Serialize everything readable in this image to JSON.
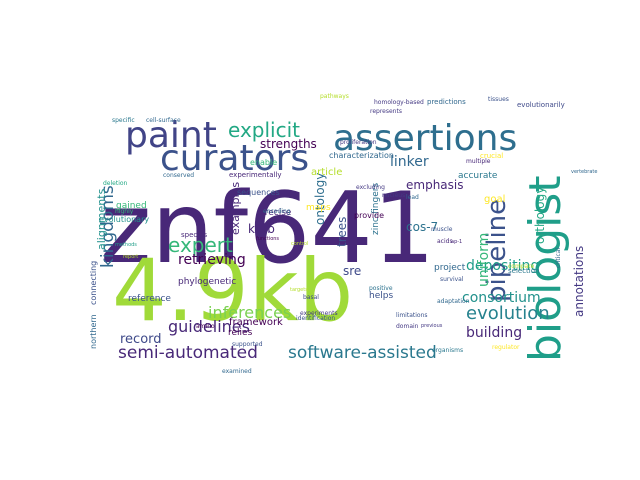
{
  "words": [
    {
      "text": "znf641",
      "color": "#482878"
    },
    {
      "text": "4.9kb",
      "color": "#a0da39"
    },
    {
      "text": "biologist",
      "color": "#1f9e89"
    },
    {
      "text": "assertions",
      "color": "#2e6e8e"
    },
    {
      "text": "curators",
      "color": "#3b528b"
    },
    {
      "text": "paint",
      "color": "#414487"
    },
    {
      "text": "explicit",
      "color": "#22a884"
    },
    {
      "text": "semi-automated",
      "color": "#482878"
    },
    {
      "text": "software-assisted",
      "color": "#2a788e"
    },
    {
      "text": "pipeline",
      "color": "#3b528b"
    },
    {
      "text": "kingdoms",
      "color": "#31688e"
    },
    {
      "text": "expert",
      "color": "#35b779"
    },
    {
      "text": "guidelines",
      "color": "#482878"
    },
    {
      "text": "inferences",
      "color": "#7ad151"
    },
    {
      "text": "retrieving",
      "color": "#440154"
    },
    {
      "text": "evolution",
      "color": "#26828e"
    },
    {
      "text": "depositing",
      "color": "#1f9e89"
    },
    {
      "text": "consortium",
      "color": "#21918c"
    },
    {
      "text": "building",
      "color": "#482878"
    },
    {
      "text": "record",
      "color": "#3e4989"
    },
    {
      "text": "strengths",
      "color": "#440154"
    },
    {
      "text": "linker",
      "color": "#31688e"
    },
    {
      "text": "emphasis",
      "color": "#482878"
    },
    {
      "text": "cos-7",
      "color": "#2c728e"
    },
    {
      "text": "uniform",
      "color": "#35b779"
    },
    {
      "text": "orthology",
      "color": "#22a884"
    },
    {
      "text": "annotations",
      "color": "#443983"
    },
    {
      "text": "ontology",
      "color": "#2e6e8e"
    },
    {
      "text": "trees",
      "color": "#3b528b"
    },
    {
      "text": "sre",
      "color": "#3e4989"
    },
    {
      "text": "krab",
      "color": "#482878"
    },
    {
      "text": "examples",
      "color": "#482878"
    },
    {
      "text": "framework",
      "color": "#440154"
    },
    {
      "text": "reference",
      "color": "#3b528b"
    },
    {
      "text": "northern",
      "color": "#31688e"
    },
    {
      "text": "alignments",
      "color": "#21918c"
    },
    {
      "text": "connecting",
      "color": "#3b528b"
    },
    {
      "text": "zinc-fingers",
      "color": "#2c728e"
    },
    {
      "text": "phylogenetic",
      "color": "#482878"
    },
    {
      "text": "accurate",
      "color": "#2a788e"
    },
    {
      "text": "goal",
      "color": "#fde725"
    },
    {
      "text": "article",
      "color": "#b5de2b"
    },
    {
      "text": "precise",
      "color": "#482878"
    },
    {
      "text": "maps",
      "color": "#fde725"
    },
    {
      "text": "relies",
      "color": "#440154"
    },
    {
      "text": "helps",
      "color": "#3b528b"
    },
    {
      "text": "project",
      "color": "#31688e"
    },
    {
      "text": "gained",
      "color": "#35b779"
    },
    {
      "text": "evolutionary",
      "color": "#21918c"
    },
    {
      "text": "characterization",
      "color": "#31688e"
    },
    {
      "text": "enable",
      "color": "#35b779"
    },
    {
      "text": "provide",
      "color": "#440154"
    },
    {
      "text": "sequences",
      "color": "#3b528b"
    },
    {
      "text": "experimentally",
      "color": "#482878"
    },
    {
      "text": "homology-based",
      "color": "#443983"
    },
    {
      "text": "predictions",
      "color": "#31688e"
    },
    {
      "text": "evolutionarily",
      "color": "#3e4989"
    },
    {
      "text": "selection",
      "color": "#2a788e"
    },
    {
      "text": "crucial",
      "color": "#fde725"
    },
    {
      "text": "species",
      "color": "#482878"
    },
    {
      "text": "limitations",
      "color": "#3b528b"
    },
    {
      "text": "adaptation",
      "color": "#31688e"
    },
    {
      "text": "domain",
      "color": "#443983"
    },
    {
      "text": "supported",
      "color": "#3b528b"
    },
    {
      "text": "examined",
      "color": "#31688e"
    },
    {
      "text": "organisms",
      "color": "#2a788e"
    },
    {
      "text": "muscle",
      "color": "#3b528b"
    },
    {
      "text": "acids",
      "color": "#482878"
    },
    {
      "text": "nucleus",
      "color": "#443983"
    },
    {
      "text": "conserved",
      "color": "#31688e"
    },
    {
      "text": "basal",
      "color": "#3e4989"
    },
    {
      "text": "positive",
      "color": "#2c728e"
    },
    {
      "text": "survival",
      "color": "#3b528b"
    },
    {
      "text": "amino",
      "color": "#440154"
    },
    {
      "text": "multiple",
      "color": "#482878"
    },
    {
      "text": "represents",
      "color": "#443983"
    },
    {
      "text": "lead",
      "color": "#31688e"
    },
    {
      "text": "excluding",
      "color": "#443983"
    },
    {
      "text": "identification",
      "color": "#3b528b"
    },
    {
      "text": "pathways",
      "color": "#b5de2b"
    },
    {
      "text": "compare",
      "color": "#b5de2b"
    },
    {
      "text": "deletion",
      "color": "#22a884"
    },
    {
      "text": "highly",
      "color": "#35b779"
    },
    {
      "text": "proliferation",
      "color": "#443983"
    },
    {
      "text": "encoding",
      "color": "#31688e"
    },
    {
      "text": "experiments",
      "color": "#443983"
    },
    {
      "text": "tissues",
      "color": "#3b528b"
    },
    {
      "text": "specific",
      "color": "#2a788e"
    },
    {
      "text": "cell-surface",
      "color": "#31688e"
    },
    {
      "text": "regulator",
      "color": "#fde725"
    },
    {
      "text": "critical",
      "color": "#31688e"
    },
    {
      "text": "vertebrate",
      "color": "#31688e"
    },
    {
      "text": "report",
      "color": "#b5de2b"
    },
    {
      "text": "methods",
      "color": "#1f9e89"
    },
    {
      "text": "functions",
      "color": "#440154"
    },
    {
      "text": "previous",
      "color": "#443983"
    },
    {
      "text": "ap-1",
      "color": "#482878"
    },
    {
      "text": "targets",
      "color": "#b5de2b"
    },
    {
      "text": "control",
      "color": "#b5de2b"
    }
  ]
}
